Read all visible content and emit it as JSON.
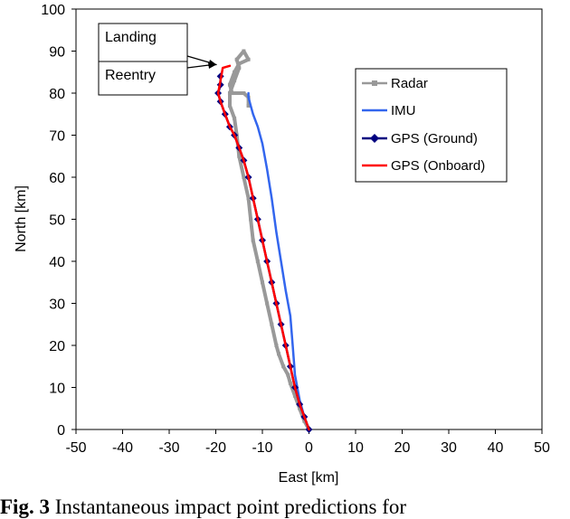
{
  "chart_data": {
    "type": "line",
    "xlabel": "East [km]",
    "ylabel": "North [km]",
    "xlim": [
      -50,
      50
    ],
    "ylim": [
      0,
      100
    ],
    "xticks": [
      -50,
      -40,
      -30,
      -20,
      -10,
      0,
      10,
      20,
      30,
      40,
      50
    ],
    "yticks": [
      0,
      10,
      20,
      30,
      40,
      50,
      60,
      70,
      80,
      90,
      100
    ],
    "grid": false,
    "legend_position": "right",
    "series": [
      {
        "name": "Radar",
        "color": "#999999",
        "marker": "square",
        "points": [
          [
            0,
            0
          ],
          [
            -1,
            2
          ],
          [
            -2,
            5
          ],
          [
            -3,
            8
          ],
          [
            -4,
            11
          ],
          [
            -4.5,
            13
          ],
          [
            -5.5,
            15
          ],
          [
            -6.5,
            18
          ],
          [
            -7,
            20
          ],
          [
            -8,
            25
          ],
          [
            -9,
            30
          ],
          [
            -10,
            35
          ],
          [
            -11,
            40
          ],
          [
            -12,
            45
          ],
          [
            -12.5,
            50
          ],
          [
            -13,
            55
          ],
          [
            -14,
            60
          ],
          [
            -15,
            65
          ],
          [
            -15.5,
            70
          ],
          [
            -16,
            74
          ],
          [
            -17,
            77
          ],
          [
            -17,
            80
          ],
          [
            -16,
            83
          ],
          [
            -15,
            86
          ],
          [
            -15.5,
            88
          ],
          [
            -14,
            90
          ],
          [
            -13,
            88
          ],
          [
            -15,
            87
          ],
          [
            -16,
            85
          ],
          [
            -17,
            82
          ],
          [
            -16.5,
            80
          ],
          [
            -14,
            80
          ],
          [
            -13,
            79
          ],
          [
            -13,
            77
          ]
        ]
      },
      {
        "name": "IMU",
        "color": "#3366ee",
        "marker": "none",
        "points": [
          [
            0,
            0
          ],
          [
            -1,
            3
          ],
          [
            -2,
            7
          ],
          [
            -3,
            13
          ],
          [
            -3.5,
            20
          ],
          [
            -4,
            27
          ],
          [
            -5,
            33
          ],
          [
            -6,
            40
          ],
          [
            -7,
            47
          ],
          [
            -8,
            55
          ],
          [
            -9,
            62
          ],
          [
            -10,
            68
          ],
          [
            -11,
            72
          ],
          [
            -12,
            75
          ],
          [
            -12.5,
            77
          ],
          [
            -13,
            79
          ],
          [
            -13,
            80
          ]
        ]
      },
      {
        "name": "GPS (Ground)",
        "color": "#000080",
        "marker": "diamond",
        "points": [
          [
            0,
            0
          ],
          [
            -1,
            3
          ],
          [
            -2,
            6
          ],
          [
            -3,
            10
          ],
          [
            -4,
            15
          ],
          [
            -5,
            20
          ],
          [
            -6,
            25
          ],
          [
            -7,
            30
          ],
          [
            -8,
            35
          ],
          [
            -9,
            40
          ],
          [
            -10,
            45
          ],
          [
            -11,
            50
          ],
          [
            -12,
            55
          ],
          [
            -13,
            60
          ],
          [
            -14,
            64
          ],
          [
            -15,
            67
          ],
          [
            -16,
            70
          ],
          [
            -17,
            72
          ],
          [
            -18,
            75
          ],
          [
            -19,
            78
          ],
          [
            -19.5,
            80
          ],
          [
            -19,
            82
          ],
          [
            -19,
            84
          ]
        ]
      },
      {
        "name": "GPS (Onboard)",
        "color": "#ff0000",
        "marker": "none",
        "points": [
          [
            0,
            0
          ],
          [
            -1,
            3
          ],
          [
            -2,
            6
          ],
          [
            -3,
            10
          ],
          [
            -4,
            15
          ],
          [
            -5,
            20
          ],
          [
            -6,
            25
          ],
          [
            -7,
            30
          ],
          [
            -8,
            35
          ],
          [
            -9,
            40
          ],
          [
            -10,
            45
          ],
          [
            -11,
            50
          ],
          [
            -12,
            55
          ],
          [
            -13,
            60
          ],
          [
            -14,
            64
          ],
          [
            -15,
            67
          ],
          [
            -16,
            70
          ],
          [
            -17,
            72
          ],
          [
            -18,
            75
          ],
          [
            -19,
            78
          ],
          [
            -19.5,
            80
          ],
          [
            -19,
            83
          ],
          [
            -18.5,
            86
          ],
          [
            -17,
            86.5
          ]
        ]
      }
    ],
    "annotations": [
      {
        "text": "Landing",
        "x": -18,
        "y": 87
      },
      {
        "text": "Reentry",
        "x": -18,
        "y": 86
      }
    ]
  },
  "caption": {
    "label": "Fig. 3",
    "text": " Instantaneous impact point predictions for"
  }
}
